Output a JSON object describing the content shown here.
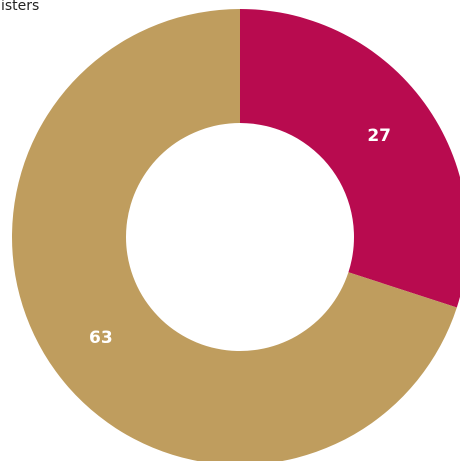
{
  "chart_data": {
    "type": "donut",
    "title": "isters",
    "values": [
      27,
      63
    ],
    "colors": [
      "#b80b4f",
      "#bf9d5e"
    ]
  }
}
